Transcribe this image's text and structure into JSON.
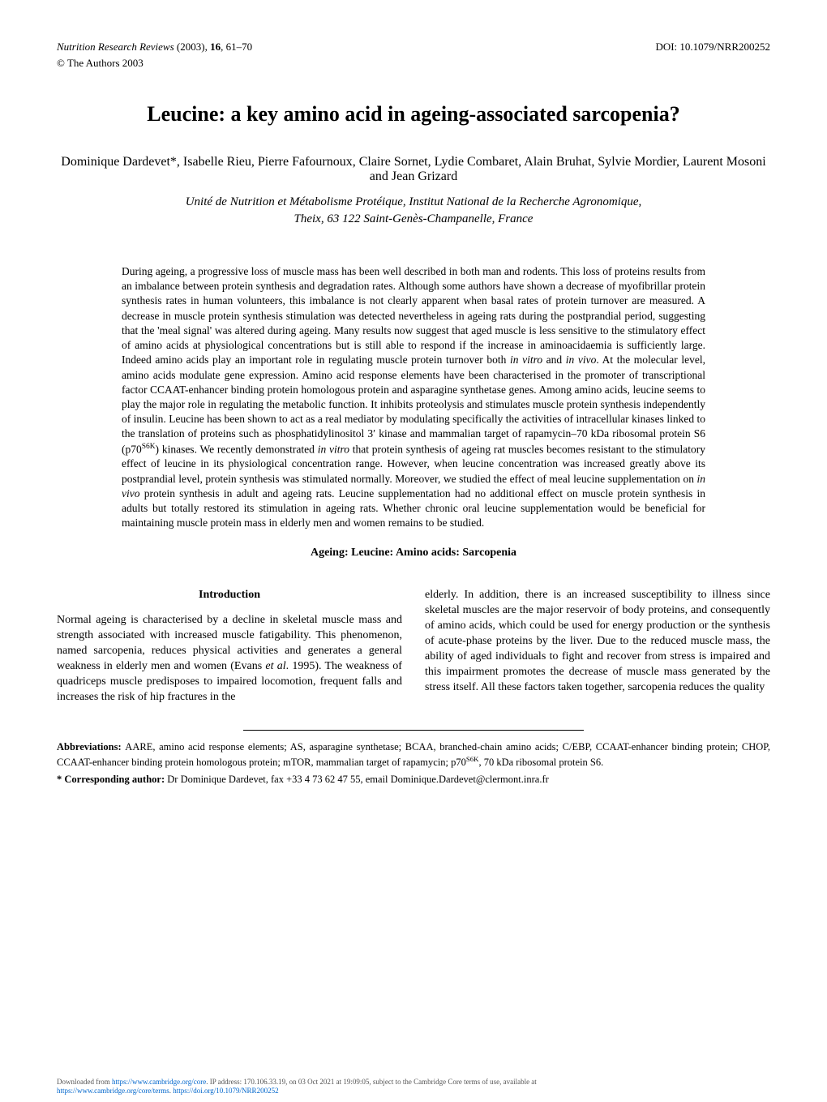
{
  "header": {
    "journal_citation": "Nutrition Research Reviews (2003), 16, 61–70",
    "doi": "DOI: 10.1079/NRR200252",
    "copyright": "© The Authors 2003"
  },
  "title": "Leucine: a key amino acid in ageing-associated sarcopenia?",
  "authors": "Dominique Dardevet*, Isabelle Rieu, Pierre Fafournoux, Claire Sornet, Lydie Combaret, Alain Bruhat, Sylvie Mordier, Laurent Mosoni and Jean Grizard",
  "affiliation_line1": "Unité de Nutrition et Métabolisme Protéique, Institut National de la Recherche Agronomique,",
  "affiliation_line2": "Theix, 63 122 Saint-Genès-Champanelle, France",
  "abstract": "During ageing, a progressive loss of muscle mass has been well described in both man and rodents. This loss of proteins results from an imbalance between protein synthesis and degradation rates. Although some authors have shown a decrease of myofibrillar protein synthesis rates in human volunteers, this imbalance is not clearly apparent when basal rates of protein turnover are measured. A decrease in muscle protein synthesis stimulation was detected nevertheless in ageing rats during the postprandial period, suggesting that the 'meal signal' was altered during ageing. Many results now suggest that aged muscle is less sensitive to the stimulatory effect of amino acids at physiological concentrations but is still able to respond if the increase in aminoacidaemia is sufficiently large. Indeed amino acids play an important role in regulating muscle protein turnover both in vitro and in vivo. At the molecular level, amino acids modulate gene expression. Amino acid response elements have been characterised in the promoter of transcriptional factor CCAAT-enhancer binding protein homologous protein and asparagine synthetase genes. Among amino acids, leucine seems to play the major role in regulating the metabolic function. It inhibits proteolysis and stimulates muscle protein synthesis independently of insulin. Leucine has been shown to act as a real mediator by modulating specifically the activities of intracellular kinases linked to the translation of proteins such as phosphatidylinositol 3′ kinase and mammalian target of rapamycin–70 kDa ribosomal protein S6 (p70S6K) kinases. We recently demonstrated in vitro that protein synthesis of ageing rat muscles becomes resistant to the stimulatory effect of leucine in its physiological concentration range. However, when leucine concentration was increased greatly above its postprandial level, protein synthesis was stimulated normally. Moreover, we studied the effect of meal leucine supplementation on in vivo protein synthesis in adult and ageing rats. Leucine supplementation had no additional effect on muscle protein synthesis in adults but totally restored its stimulation in ageing rats. Whether chronic oral leucine supplementation would be beneficial for maintaining muscle protein mass in elderly men and women remains to be studied.",
  "keywords": "Ageing: Leucine: Amino acids: Sarcopenia",
  "introduction_heading": "Introduction",
  "column_left": "Normal ageing is characterised by a decline in skeletal muscle mass and strength associated with increased muscle fatigability. This phenomenon, named sarcopenia, reduces physical activities and generates a general weakness in elderly men and women (Evans et al. 1995). The weakness of quadriceps muscle predisposes to impaired locomotion, frequent falls and increases the risk of hip fractures in the",
  "column_right": "elderly. In addition, there is an increased susceptibility to illness since skeletal muscles are the major reservoir of body proteins, and consequently of amino acids, which could be used for energy production or the synthesis of acute-phase proteins by the liver. Due to the reduced muscle mass, the ability of aged individuals to fight and recover from stress is impaired and this impairment promotes the decrease of muscle mass generated by the stress itself. All these factors taken together, sarcopenia reduces the quality",
  "footnotes": {
    "abbrev_label": "Abbreviations: ",
    "abbrev_text1": "AARE, amino acid response elements; AS, asparagine synthetase; BCAA, branched-chain amino acids; C/EBP, CCAAT-enhancer binding protein; CHOP, CCAAT-enhancer binding protein homologous protein; mTOR, mammalian target of rapamycin; p70",
    "abbrev_text2": ", 70 kDa ribosomal protein S6.",
    "abbrev_sup": "S6K",
    "corr_label": "* Corresponding author: ",
    "corr_text": "Dr Dominique Dardevet, fax +33 4 73 62 47 55, email Dominique.Dardevet@clermont.inra.fr"
  },
  "download_notice": {
    "text1": "Downloaded from ",
    "link1": "https://www.cambridge.org/core",
    "text2": ". IP address: 170.106.33.19, on 03 Oct 2021 at 19:09:05, subject to the Cambridge Core terms of use, available at",
    "link2": "https://www.cambridge.org/core/terms",
    "text3": ". ",
    "link3": "https://doi.org/10.1079/NRR200252"
  }
}
